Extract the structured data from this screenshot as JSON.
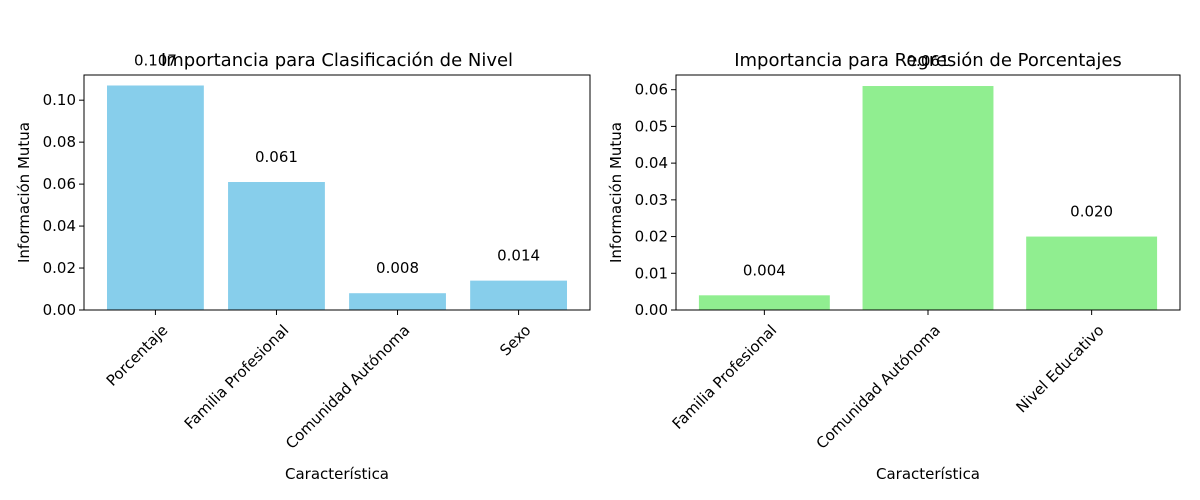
{
  "chart_data": [
    {
      "type": "bar",
      "title": "Importancia para Clasificación de Nivel",
      "xlabel": "Característica",
      "ylabel": "Información Mutua",
      "categories": [
        "Porcentaje",
        "Familia Profesional",
        "Comunidad Autónoma",
        "Sexo"
      ],
      "values": [
        0.107,
        0.061,
        0.008,
        0.014
      ],
      "data_labels": [
        "0.107",
        "0.061",
        "0.008",
        "0.014"
      ],
      "ylim": [
        0,
        0.112
      ],
      "yticks": [
        0.0,
        0.02,
        0.04,
        0.06,
        0.08,
        0.1
      ],
      "ytick_labels": [
        "0.00",
        "0.02",
        "0.04",
        "0.06",
        "0.08",
        "0.10"
      ],
      "color": "#87CEEB",
      "grid": false
    },
    {
      "type": "bar",
      "title": "Importancia para Regresión de Porcentajes",
      "xlabel": "Característica",
      "ylabel": "Información Mutua",
      "categories": [
        "Familia Profesional",
        "Comunidad Autónoma",
        "Nivel Educativo"
      ],
      "values": [
        0.004,
        0.061,
        0.02
      ],
      "data_labels": [
        "0.004",
        "0.061",
        "0.020"
      ],
      "ylim": [
        0,
        0.064
      ],
      "yticks": [
        0.0,
        0.01,
        0.02,
        0.03,
        0.04,
        0.05,
        0.06
      ],
      "ytick_labels": [
        "0.00",
        "0.01",
        "0.02",
        "0.03",
        "0.04",
        "0.05",
        "0.06"
      ],
      "color": "#90EE90",
      "grid": false
    }
  ]
}
